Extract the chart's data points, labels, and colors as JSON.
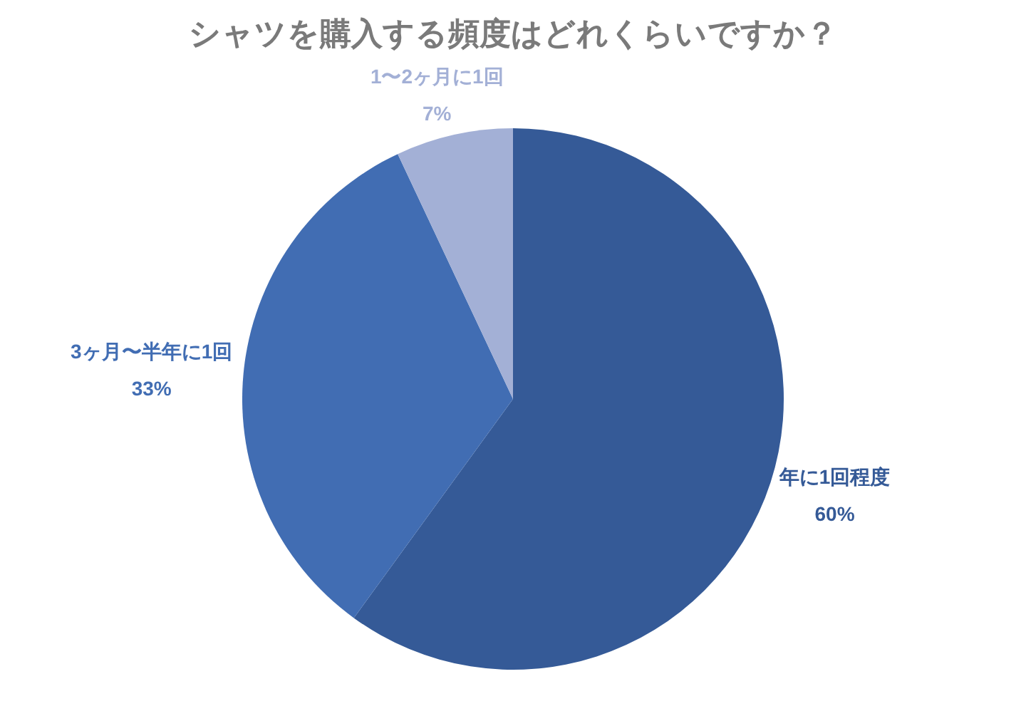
{
  "chart_data": {
    "type": "pie",
    "title": "シャツを購入する頻度はどれくらいですか？",
    "categories": [
      "年に1回程度",
      "3ヶ月〜半年に1回",
      "1〜2ヶ月に1回"
    ],
    "values": [
      60,
      33,
      7
    ],
    "colors": [
      "#355a97",
      "#416db3",
      "#a3b0d6"
    ],
    "value_labels": [
      "60%",
      "33%",
      "7%"
    ]
  }
}
